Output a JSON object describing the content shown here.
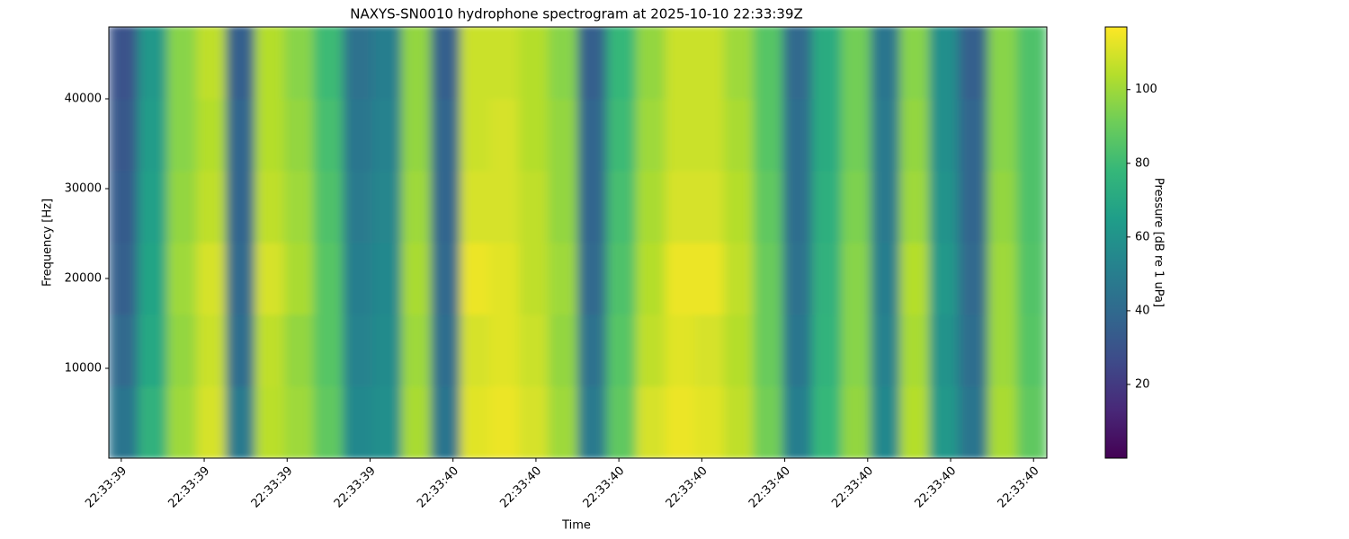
{
  "chart_data": {
    "type": "heatmap",
    "title": "NAXYS-SN0010 hydrophone spectrogram at 2025-10-10 22:33:39Z",
    "x_label": "Time",
    "y_label": "Frequency [Hz]",
    "colorbar_label": "Pressure [dB re 1 uPa]",
    "colormap": "viridis",
    "xlim": [
      -0.15,
      11.16
    ],
    "xticks": [
      {
        "value": 0,
        "label": "22:33:39"
      },
      {
        "value": 1,
        "label": "22:33:39"
      },
      {
        "value": 2,
        "label": "22:33:39"
      },
      {
        "value": 3,
        "label": "22:33:39"
      },
      {
        "value": 4,
        "label": "22:33:40"
      },
      {
        "value": 5,
        "label": "22:33:40"
      },
      {
        "value": 6,
        "label": "22:33:40"
      },
      {
        "value": 7,
        "label": "22:33:40"
      },
      {
        "value": 8,
        "label": "22:33:40"
      },
      {
        "value": 9,
        "label": "22:33:40"
      },
      {
        "value": 10,
        "label": "22:33:40"
      },
      {
        "value": 11,
        "label": "22:33:40"
      }
    ],
    "ylim": [
      0,
      48000
    ],
    "yticks": [
      10000,
      20000,
      30000,
      40000
    ],
    "zlim": [
      0,
      117
    ],
    "zticks": [
      20,
      40,
      60,
      80,
      100
    ],
    "y_bins": [
      0,
      8000,
      16000,
      24000,
      32000,
      40000,
      48000
    ],
    "z": [
      [
        45,
        75,
        100,
        110,
        48,
        105,
        100,
        88,
        55,
        58,
        102,
        45,
        112,
        114,
        110,
        100,
        48,
        88,
        110,
        114,
        112,
        106,
        92,
        50,
        78,
        98,
        55,
        104,
        62,
        45,
        102,
        88
      ],
      [
        40,
        70,
        98,
        108,
        42,
        106,
        98,
        86,
        52,
        56,
        100,
        42,
        110,
        112,
        108,
        98,
        44,
        86,
        106,
        112,
        110,
        104,
        90,
        46,
        76,
        96,
        52,
        102,
        60,
        42,
        100,
        86
      ],
      [
        36,
        68,
        100,
        110,
        40,
        110,
        102,
        86,
        50,
        55,
        102,
        40,
        114,
        112,
        106,
        100,
        40,
        84,
        104,
        114,
        114,
        106,
        90,
        44,
        75,
        96,
        50,
        104,
        62,
        40,
        100,
        85
      ],
      [
        34,
        66,
        98,
        106,
        38,
        106,
        100,
        84,
        48,
        54,
        100,
        38,
        110,
        110,
        106,
        98,
        38,
        82,
        102,
        110,
        110,
        104,
        88,
        42,
        74,
        94,
        48,
        100,
        60,
        38,
        98,
        84
      ],
      [
        32,
        64,
        96,
        104,
        38,
        104,
        98,
        82,
        46,
        52,
        98,
        38,
        108,
        110,
        104,
        98,
        38,
        80,
        100,
        108,
        108,
        102,
        86,
        42,
        72,
        92,
        48,
        98,
        58,
        38,
        96,
        84
      ],
      [
        30,
        62,
        96,
        106,
        36,
        104,
        96,
        80,
        44,
        50,
        98,
        36,
        108,
        108,
        104,
        96,
        36,
        78,
        98,
        108,
        108,
        100,
        86,
        40,
        72,
        92,
        46,
        96,
        58,
        36,
        96,
        84
      ]
    ]
  }
}
